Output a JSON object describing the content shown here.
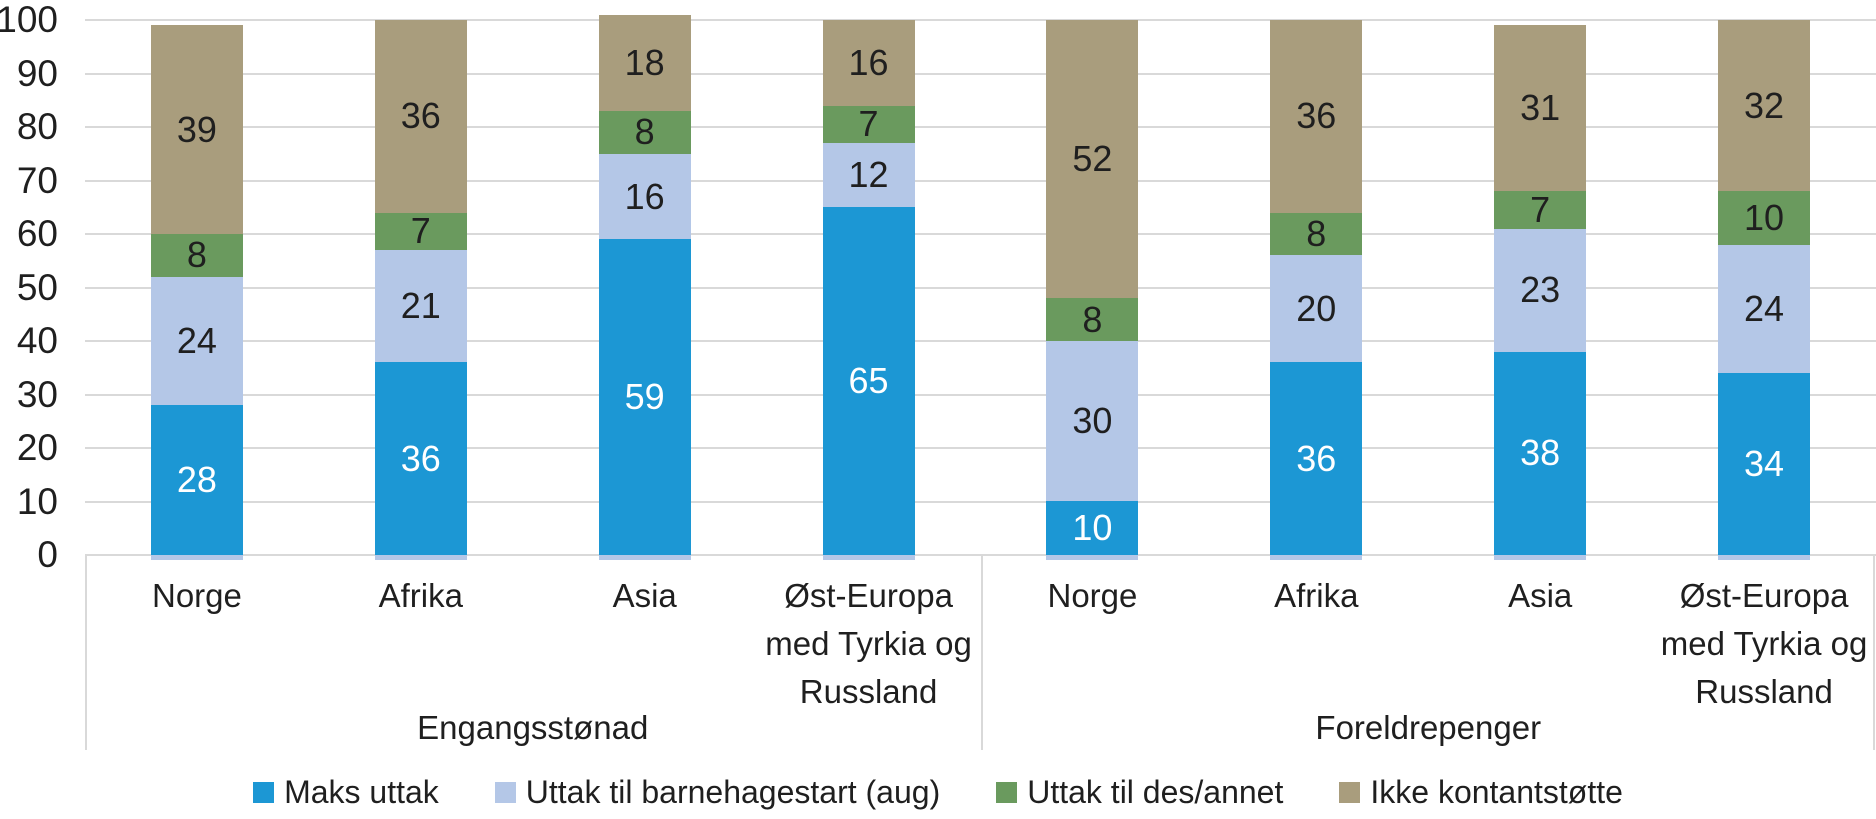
{
  "chart_data": {
    "type": "bar",
    "stacked": true,
    "title": "",
    "grid": true,
    "legend_position": "bottom",
    "y_axis": {
      "min": 0,
      "max": 100,
      "step": 10,
      "ticks": [
        0,
        10,
        20,
        30,
        40,
        50,
        60,
        70,
        80,
        90,
        100
      ]
    },
    "group_labels": [
      "Engangsstønad",
      "Foreldrepenger"
    ],
    "categories": [
      "Norge",
      "Afrika",
      "Asia",
      "Øst-Europa med Tyrkia og Russland",
      "Norge",
      "Afrika",
      "Asia",
      "Øst-Europa med Tyrkia og Russland"
    ],
    "category_lines": [
      [
        "Norge"
      ],
      [
        "Afrika"
      ],
      [
        "Asia"
      ],
      [
        "Øst-Europa",
        "med Tyrkia og",
        "Russland"
      ],
      [
        "Norge"
      ],
      [
        "Afrika"
      ],
      [
        "Asia"
      ],
      [
        "Øst-Europa",
        "med Tyrkia og",
        "Russland"
      ]
    ],
    "series": [
      {
        "name": "Maks uttak",
        "color": "#1c97d4",
        "label_color": "#ffffff",
        "values": [
          28,
          36,
          59,
          65,
          10,
          36,
          38,
          34
        ]
      },
      {
        "name": "Uttak til barnehagestart (aug)",
        "color": "#b4c7e7",
        "label_color": "#1f1f1f",
        "values": [
          24,
          21,
          16,
          12,
          30,
          20,
          23,
          24
        ]
      },
      {
        "name": "Uttak til des/annet",
        "color": "#6a9a5e",
        "label_color": "#1f1f1f",
        "values": [
          8,
          7,
          8,
          7,
          8,
          8,
          7,
          10
        ]
      },
      {
        "name": "Ikke kontantstøtte",
        "color": "#a99d7d",
        "label_color": "#1f1f1f",
        "values": [
          39,
          36,
          18,
          16,
          52,
          36,
          31,
          32
        ]
      }
    ],
    "colors": {
      "gridline": "#d9d9d9",
      "separator": "#d9d9d9",
      "text": "#1f1f1f",
      "background": "#ffffff"
    }
  }
}
